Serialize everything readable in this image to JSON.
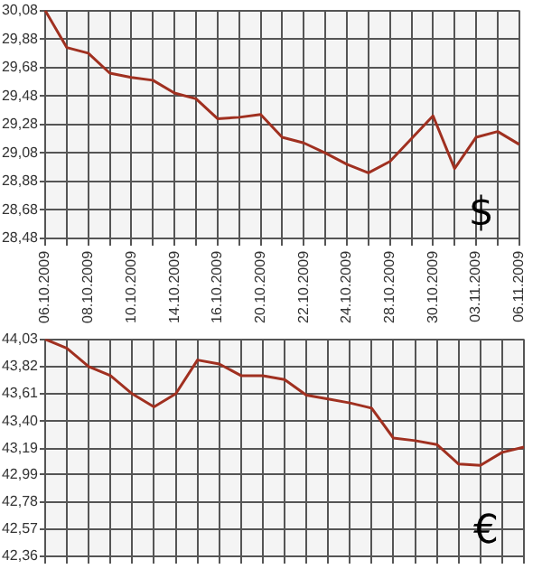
{
  "chart_data": [
    {
      "type": "line",
      "categories": [
        "06.10.2009",
        null,
        "08.10.2009",
        null,
        "10.10.2009",
        null,
        "14.10.2009",
        null,
        "16.10.2009",
        null,
        "20.10.2009",
        null,
        "22.10.2009",
        null,
        "24.10.2009",
        null,
        "28.10.2009",
        null,
        "30.10.2009",
        null,
        "03.11.2009",
        null,
        "06.11.2009"
      ],
      "series": [
        {
          "color": "#a03020",
          "values": [
            30.08,
            29.82,
            29.78,
            29.64,
            29.61,
            29.59,
            29.5,
            29.46,
            29.32,
            29.33,
            29.35,
            29.19,
            29.15,
            29.08,
            29.0,
            28.94,
            29.02,
            29.18,
            29.34,
            28.97,
            29.19,
            29.23,
            29.14
          ]
        }
      ],
      "ylim": [
        28.48,
        30.08
      ],
      "yticks": [
        {
          "value": 28.48,
          "label": "28,48"
        },
        {
          "value": 28.68,
          "label": "28,68"
        },
        {
          "value": 28.88,
          "label": "28,88"
        },
        {
          "value": 29.08,
          "label": "29,08"
        },
        {
          "value": 29.28,
          "label": "29,28"
        },
        {
          "value": 29.48,
          "label": "29,48"
        },
        {
          "value": 29.68,
          "label": "29,68"
        },
        {
          "value": 29.88,
          "label": "29,88"
        },
        {
          "value": 30.08,
          "label": "30,08"
        }
      ],
      "grid": true,
      "marker": "none",
      "annotations": [
        "$"
      ]
    },
    {
      "type": "line",
      "categories": [
        "06.10.2009",
        null,
        "08.10.2009",
        null,
        "10.10.2009",
        null,
        "14.10.2009",
        null,
        "16.10.2009",
        null,
        "20.10.2009",
        null,
        "22.10.2009",
        null,
        "24.10.2009",
        null,
        "28.10.2009",
        null,
        "30.10.2009",
        null,
        "03.11.2009",
        null,
        "06.11.2009"
      ],
      "series": [
        {
          "color": "#a03020",
          "values": [
            44.03,
            43.96,
            43.82,
            43.75,
            43.61,
            43.51,
            43.61,
            43.87,
            43.84,
            43.75,
            43.75,
            43.72,
            43.6,
            43.57,
            43.54,
            43.5,
            43.27,
            43.25,
            43.22,
            43.07,
            43.06,
            43.16,
            43.2
          ]
        }
      ],
      "ylim": [
        42.36,
        44.03
      ],
      "yticks": [
        {
          "value": 42.36,
          "label": "42,36"
        },
        {
          "value": 42.57,
          "label": "42,57"
        },
        {
          "value": 42.78,
          "label": "42,78"
        },
        {
          "value": 42.99,
          "label": "42,99"
        },
        {
          "value": 43.19,
          "label": "43,19"
        },
        {
          "value": 43.4,
          "label": "43,40"
        },
        {
          "value": 43.61,
          "label": "43,61"
        },
        {
          "value": 43.82,
          "label": "43,82"
        },
        {
          "value": 44.03,
          "label": "44,03"
        }
      ],
      "grid": true,
      "marker": "none",
      "tick_labels": "y",
      "annotations": [
        "€"
      ]
    }
  ]
}
